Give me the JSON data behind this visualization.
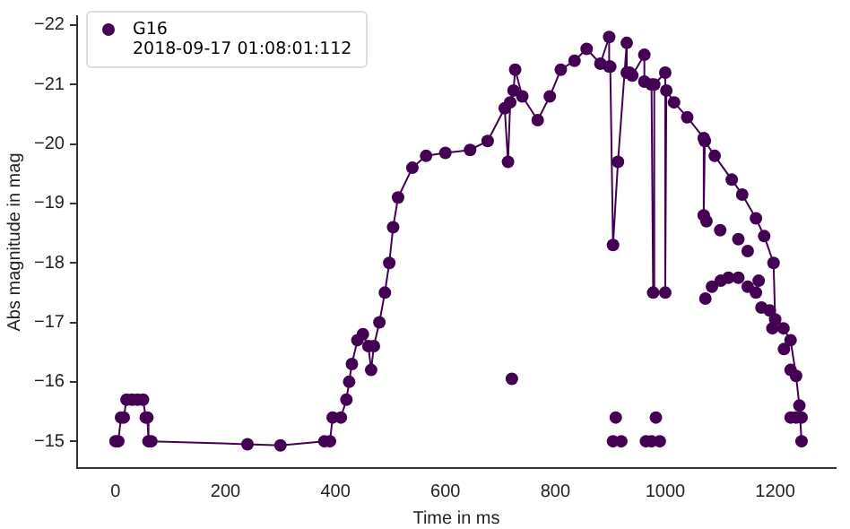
{
  "chart_data": {
    "type": "line",
    "xlabel": "Time in ms",
    "ylabel": "Abs magnitude in mag",
    "xlim": [
      -70,
      1310
    ],
    "ylim": [
      -14.55,
      -22.15
    ],
    "xticks": [
      0,
      200,
      400,
      600,
      800,
      1000,
      1200
    ],
    "yticks": [
      -22,
      -21,
      -20,
      -19,
      -18,
      -17,
      -16,
      -15
    ],
    "grid": false,
    "legend": "top left",
    "marker": "circle",
    "line_style": "solid",
    "series": [
      {
        "name": "G16\n2018-09-17 01:08:01:112",
        "color": "#440154",
        "x": [
          0,
          5,
          10,
          15,
          20,
          30,
          40,
          50,
          55,
          58,
          60,
          65,
          240,
          300,
          380,
          390,
          395,
          410,
          420,
          425,
          430,
          440,
          450,
          460,
          465,
          470,
          480,
          490,
          498,
          505,
          514,
          540,
          565,
          600,
          645,
          677,
          708,
          714,
          718,
          724,
          727,
          740,
          768,
          790,
          810,
          835,
          857,
          882,
          898,
          898,
          900,
          905,
          914,
          930,
          930,
          935,
          940,
          962,
          962,
          975,
          978,
          980,
          1000,
          1000,
          1002,
          1016,
          1040,
          1070,
          1070,
          1072,
          1090,
          1121,
          1140,
          1165,
          1180,
          1197,
          1200,
          1215,
          1228,
          1238,
          1244,
          1248
        ],
        "values": [
          -15,
          -15,
          -15.4,
          -15.4,
          -15.7,
          -15.7,
          -15.7,
          -15.7,
          -15.4,
          -15.4,
          -15,
          -15,
          -14.95,
          -14.93,
          -15,
          -15,
          -15.4,
          -15.4,
          -15.7,
          -16,
          -16.3,
          -16.7,
          -16.8,
          -16.6,
          -16.2,
          -16.6,
          -17,
          -17.5,
          -18,
          -18.6,
          -19.1,
          -19.6,
          -19.8,
          -19.85,
          -19.9,
          -20.05,
          -20.6,
          -19.7,
          -20.7,
          -20.9,
          -21.25,
          -20.8,
          -20.4,
          -20.8,
          -21.25,
          -21.4,
          -21.6,
          -21.35,
          -21.8,
          -21.3,
          -21.3,
          -18.3,
          -19.7,
          -21.7,
          -21.2,
          -21.2,
          -21.15,
          -21.5,
          -21.05,
          -21,
          -17.5,
          -21,
          -21.2,
          -17.5,
          -20.9,
          -20.7,
          -20.45,
          -20.1,
          -18.8,
          -20.05,
          -19.8,
          -19.4,
          -19.15,
          -18.75,
          -18.45,
          -18,
          -17.05,
          -16.9,
          -16.7,
          -16.1,
          -15.6,
          -15
        ]
      },
      {
        "type": "scatter",
        "color": "#440154",
        "x": [
          721,
          905,
          910,
          920,
          965,
          975,
          983,
          990,
          1073,
          1085,
          1101,
          1115,
          1133,
          1150,
          1165,
          1175,
          1195,
          1216,
          1228,
          1075,
          1100,
          1133,
          1150,
          1170,
          1190,
          1228,
          1238,
          1248
        ],
        "values": [
          -16.05,
          -15,
          -15.4,
          -15,
          -15,
          -15,
          -15.4,
          -15,
          -17.4,
          -17.6,
          -17.7,
          -17.75,
          -17.75,
          -17.6,
          -17.5,
          -17.25,
          -16.9,
          -16.55,
          -16.2,
          -18.7,
          -18.55,
          -18.4,
          -18.2,
          -17.7,
          -17.2,
          -15.4,
          -15.4,
          -15.4
        ]
      }
    ]
  }
}
